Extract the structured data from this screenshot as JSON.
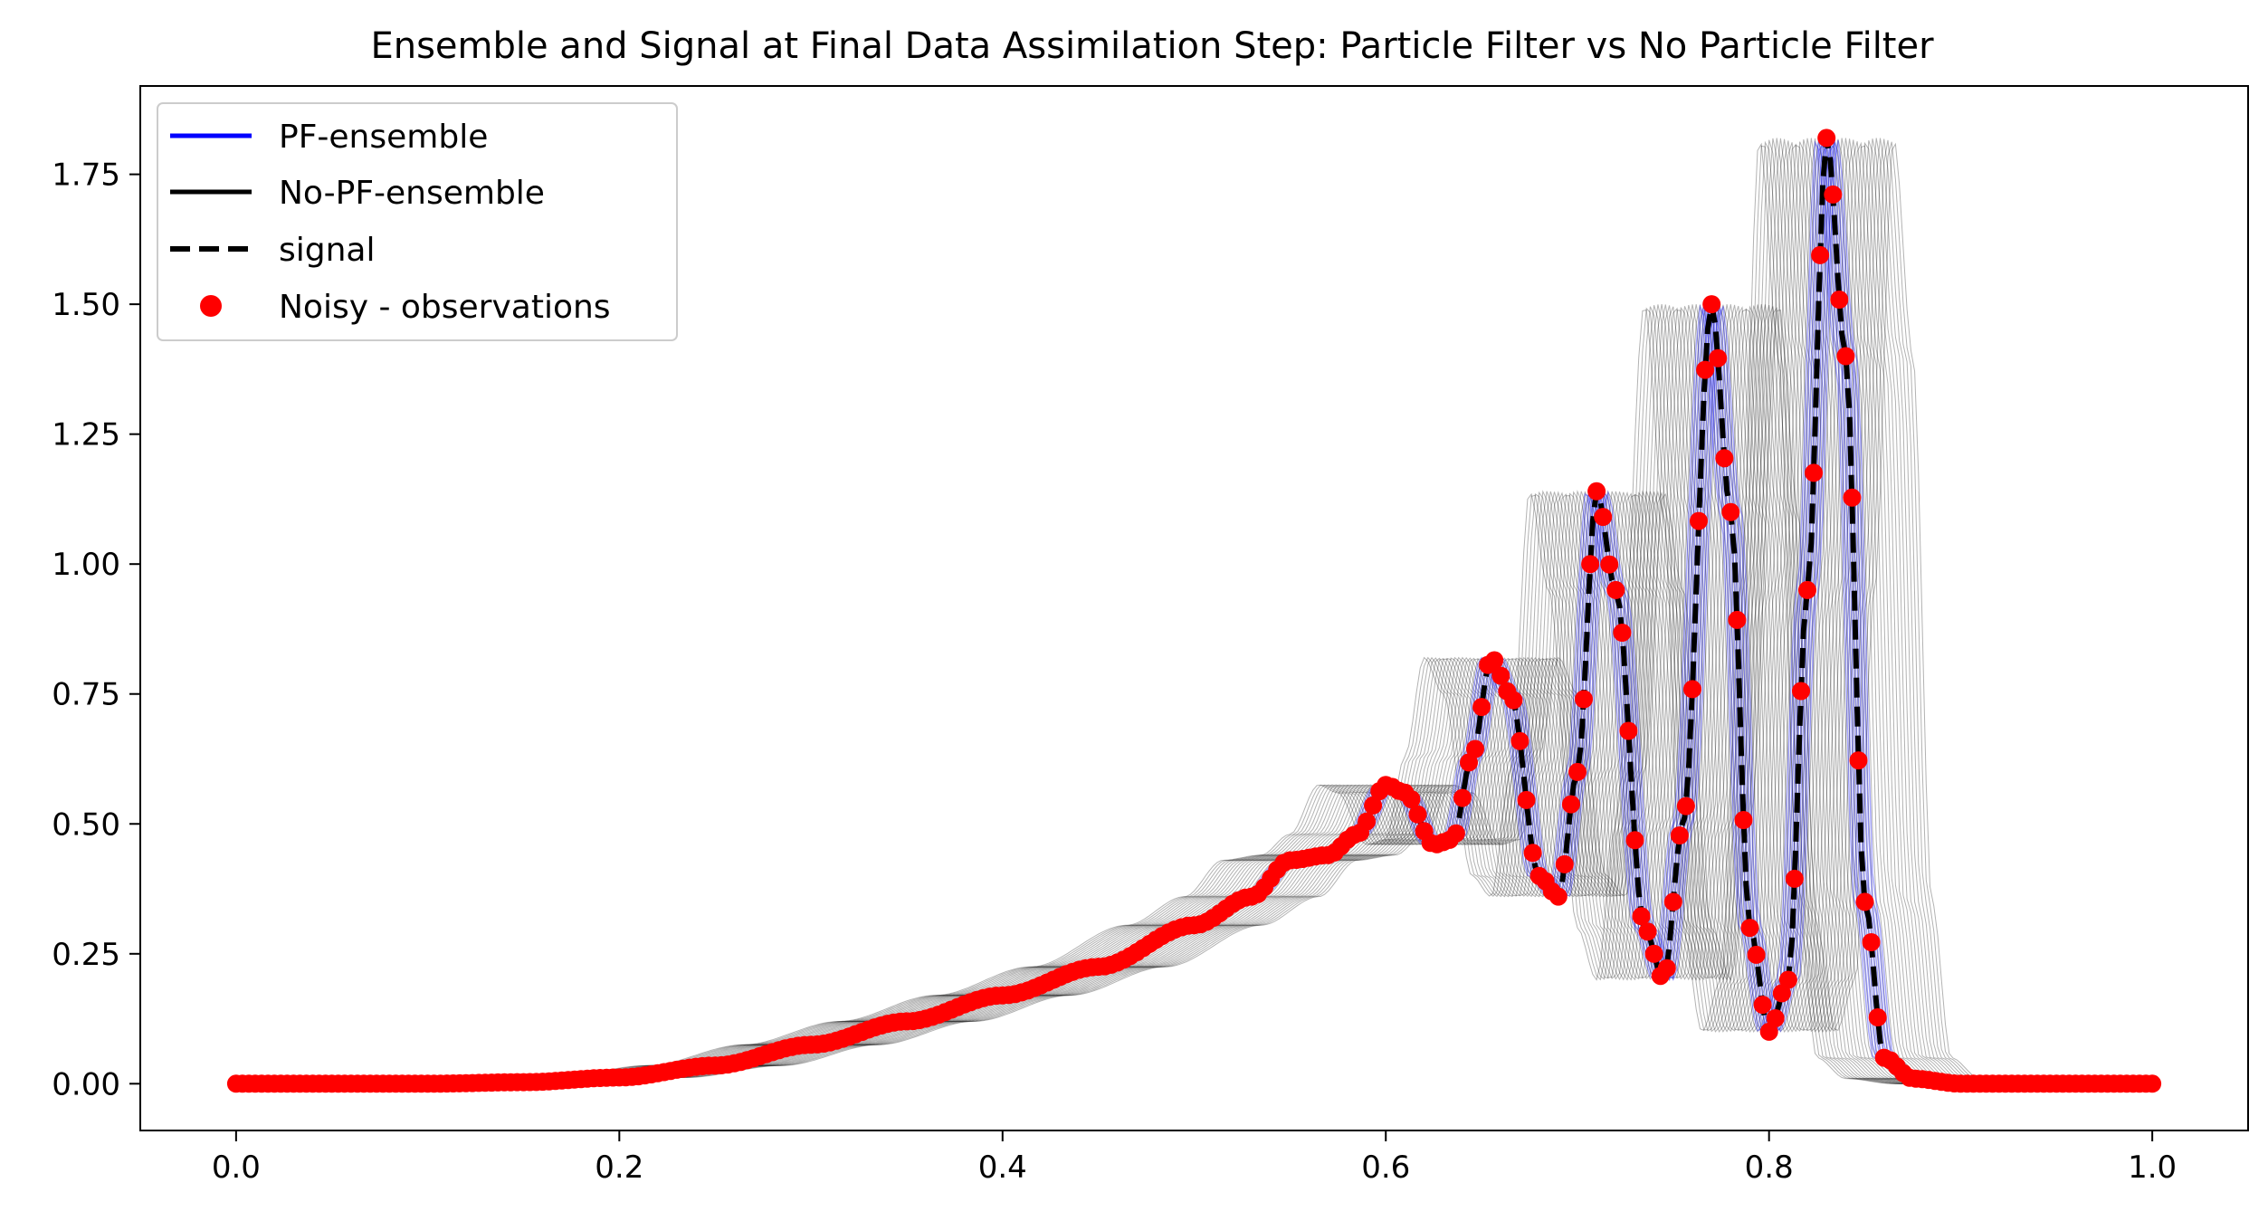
{
  "chart_data": {
    "type": "line",
    "title": "Ensemble and Signal at Final Data Assimilation Step: Particle Filter vs No Particle Filter",
    "xlabel": "",
    "ylabel": "",
    "xlim": [
      -0.05,
      1.05
    ],
    "ylim": [
      -0.09,
      1.92
    ],
    "x_ticks": [
      0.0,
      0.2,
      0.4,
      0.6,
      0.8,
      1.0
    ],
    "x_tick_labels": [
      "0.0",
      "0.2",
      "0.4",
      "0.6",
      "0.8",
      "1.0"
    ],
    "y_ticks": [
      0.0,
      0.25,
      0.5,
      0.75,
      1.0,
      1.25,
      1.5,
      1.75
    ],
    "y_tick_labels": [
      "0.00",
      "0.25",
      "0.50",
      "0.75",
      "1.00",
      "1.25",
      "1.50",
      "1.75"
    ],
    "grid": false,
    "legend": {
      "position": "upper-left",
      "entries": [
        {
          "label": "PF-ensemble",
          "style": "solid",
          "color": "#0000ff"
        },
        {
          "label": "No-PF-ensemble",
          "style": "solid",
          "color": "#000000"
        },
        {
          "label": "signal",
          "style": "dashed",
          "color": "#000000"
        },
        {
          "label": "Noisy - observations",
          "style": "marker",
          "color": "#ff0000"
        }
      ]
    },
    "ensemble": {
      "count": 40,
      "x_shift_range": [
        -0.035,
        0.035
      ],
      "pf_color": "#0000ff",
      "no_pf_color": "#000000"
    },
    "signal_key_points": [
      [
        0.0,
        0.0
      ],
      [
        0.1,
        0.0
      ],
      [
        0.15,
        0.003
      ],
      [
        0.2,
        0.012
      ],
      [
        0.25,
        0.035
      ],
      [
        0.3,
        0.075
      ],
      [
        0.35,
        0.12
      ],
      [
        0.4,
        0.17
      ],
      [
        0.45,
        0.225
      ],
      [
        0.5,
        0.305
      ],
      [
        0.53,
        0.36
      ],
      [
        0.55,
        0.43
      ],
      [
        0.57,
        0.44
      ],
      [
        0.585,
        0.48
      ],
      [
        0.6,
        0.575
      ],
      [
        0.61,
        0.56
      ],
      [
        0.625,
        0.46
      ],
      [
        0.635,
        0.47
      ],
      [
        0.645,
        0.63
      ],
      [
        0.655,
        0.82
      ],
      [
        0.665,
        0.75
      ],
      [
        0.68,
        0.4
      ],
      [
        0.69,
        0.36
      ],
      [
        0.7,
        0.6
      ],
      [
        0.71,
        1.14
      ],
      [
        0.72,
        0.95
      ],
      [
        0.735,
        0.3
      ],
      [
        0.745,
        0.2
      ],
      [
        0.755,
        0.5
      ],
      [
        0.77,
        1.5
      ],
      [
        0.78,
        1.1
      ],
      [
        0.79,
        0.3
      ],
      [
        0.8,
        0.1
      ],
      [
        0.81,
        0.2
      ],
      [
        0.82,
        0.95
      ],
      [
        0.83,
        1.82
      ],
      [
        0.84,
        1.4
      ],
      [
        0.85,
        0.35
      ],
      [
        0.86,
        0.05
      ],
      [
        0.875,
        0.01
      ],
      [
        0.9,
        0.0
      ],
      [
        1.0,
        0.0
      ]
    ],
    "observations_count": 301,
    "observation_color": "#ff0000"
  }
}
